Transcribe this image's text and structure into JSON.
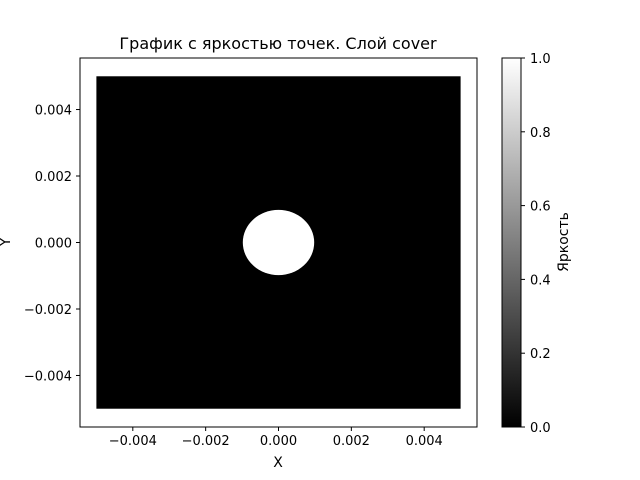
{
  "chart_data": {
    "type": "heatmap",
    "title": "График с яркостью точек. Слой cover",
    "xlabel": "X",
    "ylabel": "Y",
    "xlim": [
      -0.00545,
      0.00545
    ],
    "ylim": [
      -0.00555,
      0.00555
    ],
    "x_ticks": [
      {
        "value": -0.004,
        "label": "−0.004"
      },
      {
        "value": -0.002,
        "label": "−0.002"
      },
      {
        "value": 0.0,
        "label": "0.000"
      },
      {
        "value": 0.002,
        "label": "0.002"
      },
      {
        "value": 0.004,
        "label": "0.004"
      }
    ],
    "y_ticks": [
      {
        "value": -0.004,
        "label": "−0.004"
      },
      {
        "value": -0.002,
        "label": "−0.002"
      },
      {
        "value": 0.0,
        "label": "0.000"
      },
      {
        "value": 0.002,
        "label": "0.002"
      },
      {
        "value": 0.004,
        "label": "0.004"
      }
    ],
    "point_region": {
      "x_range": [
        -0.005,
        0.005
      ],
      "y_range": [
        -0.005,
        0.005
      ],
      "brightness": 0.0,
      "color": "#000000"
    },
    "bright_disk": {
      "center": [
        0.0,
        0.0
      ],
      "radius": 0.00098,
      "brightness": 1.0,
      "color": "#ffffff"
    },
    "colorbar": {
      "label": "Яркость",
      "cmap": [
        "#000000",
        "#ffffff"
      ],
      "range": [
        0.0,
        1.0
      ],
      "ticks": [
        {
          "value": 0.0,
          "label": "0.0"
        },
        {
          "value": 0.2,
          "label": "0.2"
        },
        {
          "value": 0.4,
          "label": "0.4"
        },
        {
          "value": 0.6,
          "label": "0.6"
        },
        {
          "value": 0.8,
          "label": "0.8"
        },
        {
          "value": 1.0,
          "label": "1.0"
        }
      ]
    },
    "grid": false,
    "legend": false
  }
}
